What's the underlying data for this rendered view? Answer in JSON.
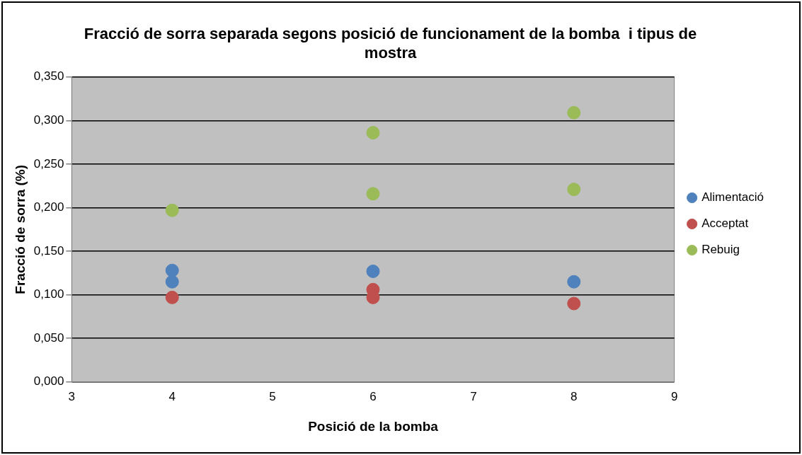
{
  "chart_data": {
    "type": "scatter",
    "title": "Fracció de sorra separada segons posició de funcionament de la bomba  i tipus de mostra",
    "xlabel": "Posició de la bomba",
    "ylabel": "Fracció de sorra (%)",
    "series": [
      {
        "name": "Alimentació",
        "color": "#4f81bd",
        "x": [
          4,
          4,
          6,
          8
        ],
        "values": [
          0.128,
          0.115,
          0.127,
          0.115
        ]
      },
      {
        "name": "Acceptat",
        "color": "#c0504d",
        "x": [
          4,
          6,
          6,
          8
        ],
        "values": [
          0.097,
          0.106,
          0.097,
          0.09
        ]
      },
      {
        "name": "Rebuig",
        "color": "#9bbb59",
        "x": [
          4,
          6,
          6,
          8,
          8
        ],
        "values": [
          0.197,
          0.286,
          0.216,
          0.309,
          0.221
        ]
      }
    ],
    "xlim": [
      3,
      9
    ],
    "xticks": [
      3,
      4,
      5,
      6,
      7,
      8,
      9
    ],
    "ylim": [
      0,
      0.35
    ],
    "yticks": [
      {
        "value": 0,
        "label": "0,000"
      },
      {
        "value": 0.05,
        "label": "0,050"
      },
      {
        "value": 0.1,
        "label": "0,100"
      },
      {
        "value": 0.15,
        "label": "0,150"
      },
      {
        "value": 0.2,
        "label": "0,200"
      },
      {
        "value": 0.25,
        "label": "0,250"
      },
      {
        "value": 0.3,
        "label": "0,300"
      },
      {
        "value": 0.35,
        "label": "0,350"
      }
    ],
    "grid": "y",
    "legend": "right",
    "marker": "circle"
  }
}
